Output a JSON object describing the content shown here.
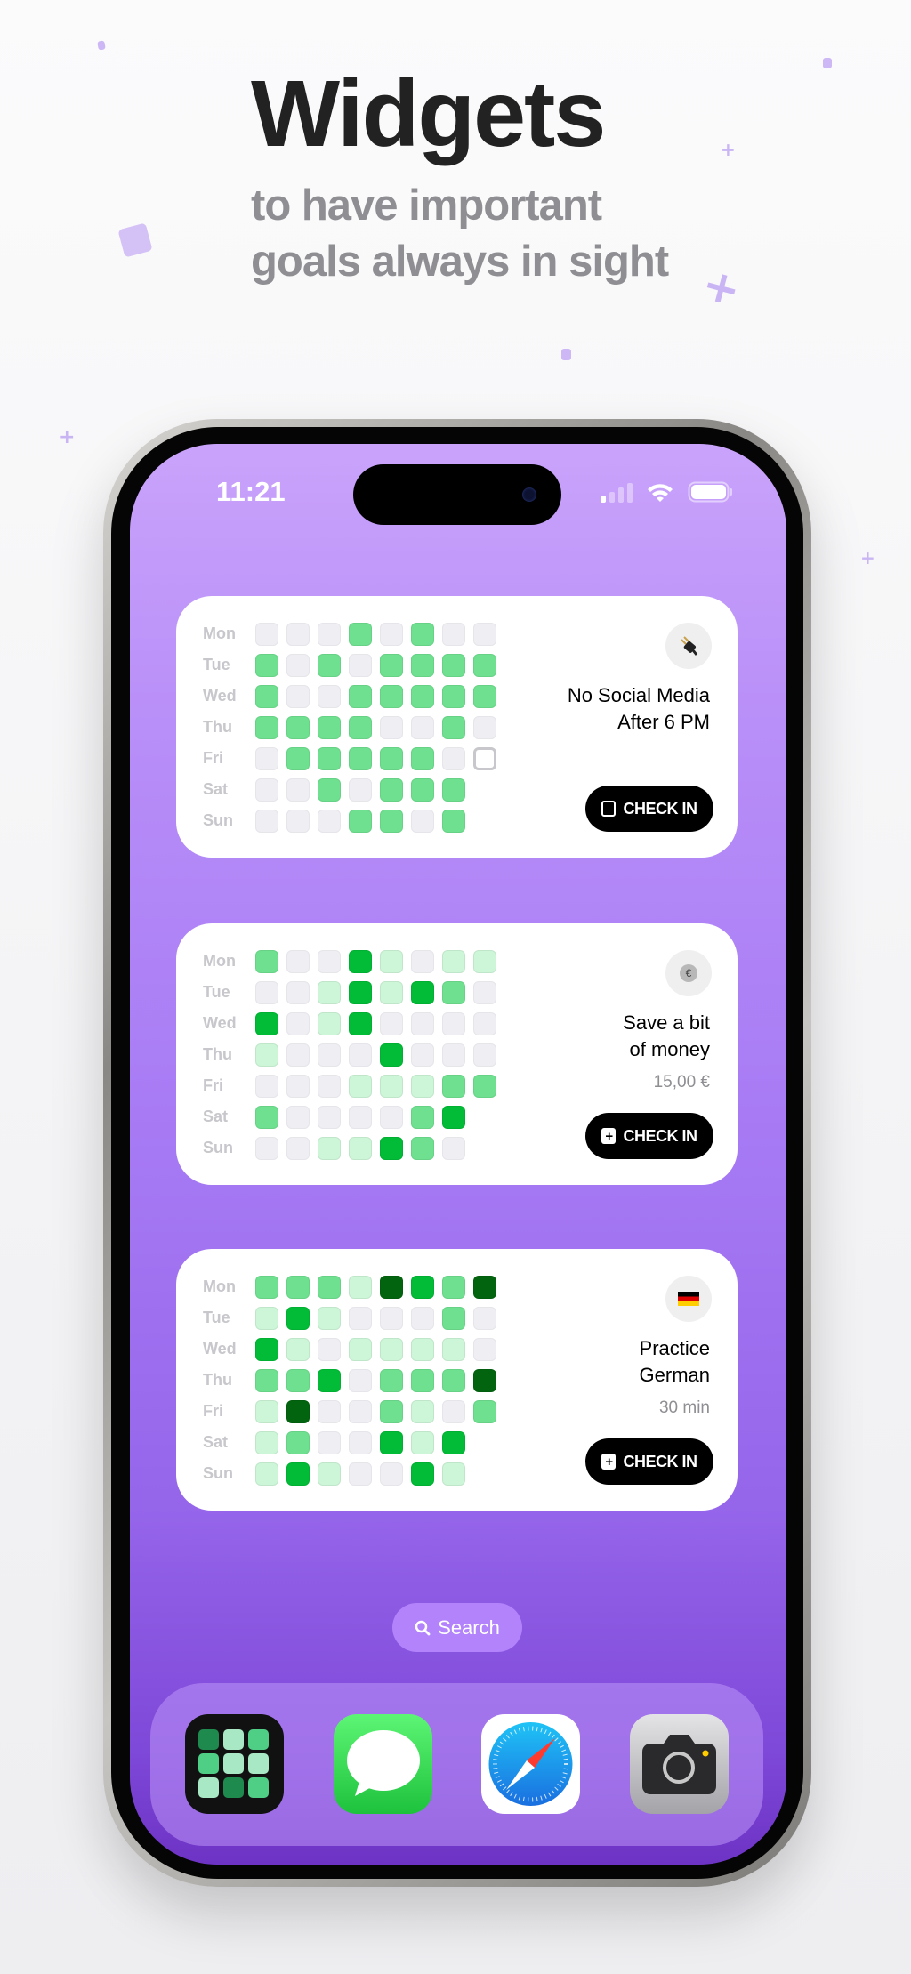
{
  "header": {
    "title": "Widgets",
    "subtitle": "to have important goals always in sight"
  },
  "status_bar": {
    "time": "11:21",
    "icons": [
      "signal-icon",
      "wifi-icon",
      "battery-icon"
    ]
  },
  "level_colors": {
    "0": "#efeff3",
    "1": "#cdf5d7",
    "2": "#6ee08f",
    "3": "#02bb36",
    "4": "#03640f"
  },
  "widgets": [
    {
      "days": [
        "Mon",
        "Tue",
        "Wed",
        "Thu",
        "Fri",
        "Sat",
        "Sun"
      ],
      "icon": "plug-icon",
      "title_lines": [
        "No Social Media",
        "After 6 PM"
      ],
      "subtitle": "",
      "button_label": "CHECK IN",
      "button_icon": "empty-square-icon",
      "grid": [
        [
          0,
          0,
          0,
          2,
          0,
          2,
          0,
          0
        ],
        [
          2,
          0,
          2,
          0,
          2,
          2,
          2,
          2
        ],
        [
          2,
          0,
          0,
          2,
          2,
          2,
          2,
          2
        ],
        [
          2,
          2,
          2,
          2,
          0,
          0,
          2,
          0
        ],
        [
          0,
          2,
          2,
          2,
          2,
          2,
          0,
          "today"
        ],
        [
          0,
          0,
          2,
          0,
          2,
          2,
          2
        ],
        [
          0,
          0,
          0,
          2,
          2,
          0,
          2
        ]
      ]
    },
    {
      "days": [
        "Mon",
        "Tue",
        "Wed",
        "Thu",
        "Fri",
        "Sat",
        "Sun"
      ],
      "icon": "euro-coin-icon",
      "title_lines": [
        "Save a bit",
        "of money"
      ],
      "subtitle": "15,00 €",
      "button_label": "CHECK IN",
      "button_icon": "plus-square-icon",
      "grid": [
        [
          2,
          0,
          0,
          3,
          1,
          0,
          1,
          1
        ],
        [
          0,
          0,
          1,
          3,
          1,
          3,
          2,
          0
        ],
        [
          3,
          0,
          1,
          3,
          0,
          0,
          0,
          0
        ],
        [
          1,
          0,
          0,
          0,
          3,
          0,
          0,
          0
        ],
        [
          0,
          0,
          0,
          1,
          1,
          1,
          2,
          2
        ],
        [
          2,
          0,
          0,
          0,
          0,
          2,
          3
        ],
        [
          0,
          0,
          1,
          1,
          3,
          2,
          0
        ]
      ]
    },
    {
      "days": [
        "Mon",
        "Tue",
        "Wed",
        "Thu",
        "Fri",
        "Sat",
        "Sun"
      ],
      "icon": "german-flag-icon",
      "title_lines": [
        "Practice",
        "German"
      ],
      "subtitle": "30 min",
      "button_label": "CHECK IN",
      "button_icon": "plus-square-icon",
      "grid": [
        [
          2,
          2,
          2,
          1,
          4,
          3,
          2,
          4
        ],
        [
          1,
          3,
          1,
          0,
          0,
          0,
          2,
          0
        ],
        [
          3,
          1,
          0,
          1,
          1,
          1,
          1,
          0
        ],
        [
          2,
          2,
          3,
          0,
          2,
          2,
          2,
          4
        ],
        [
          1,
          4,
          0,
          0,
          2,
          1,
          0,
          2
        ],
        [
          1,
          2,
          0,
          0,
          3,
          1,
          3
        ],
        [
          1,
          3,
          1,
          0,
          0,
          3,
          1
        ]
      ]
    }
  ],
  "search": {
    "label": "Search"
  },
  "dock": {
    "apps": [
      "habit-grid-app-icon",
      "messages-app-icon",
      "safari-app-icon",
      "camera-app-icon"
    ]
  }
}
